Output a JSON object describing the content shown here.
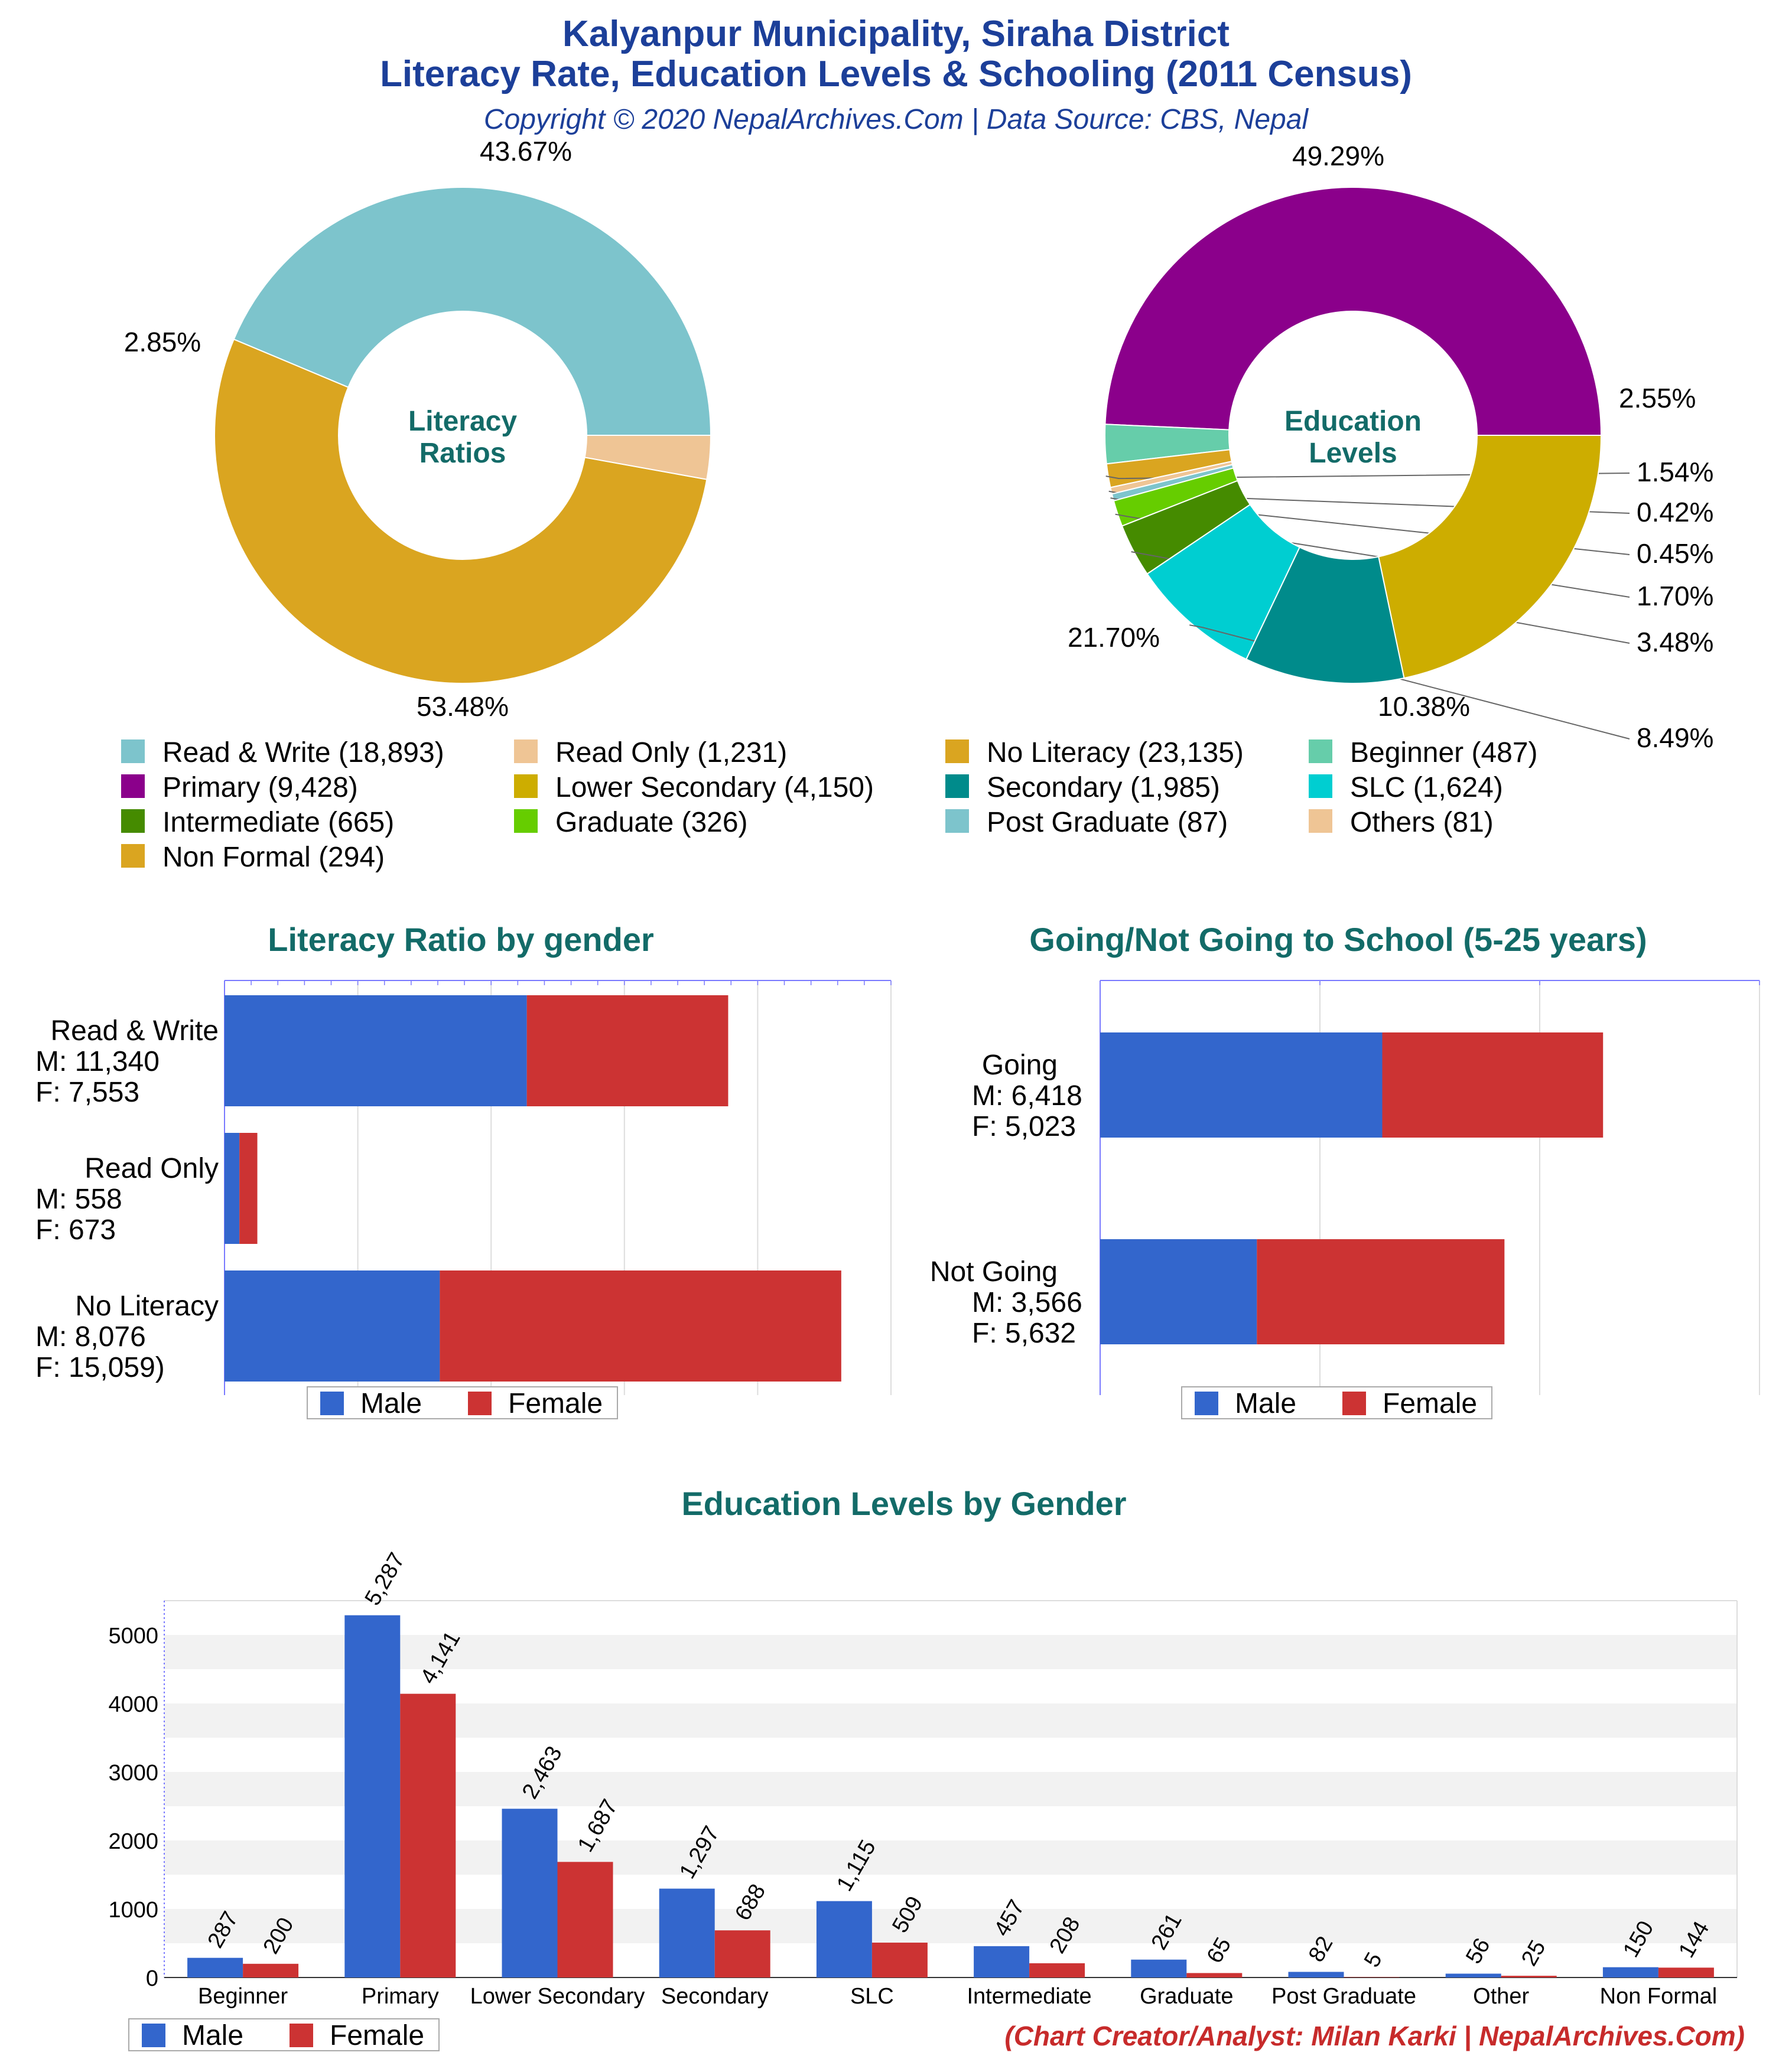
{
  "header": {
    "title_line1": "Kalyanpur Municipality, Siraha District",
    "title_line2": "Literacy Rate, Education Levels & Schooling (2011 Census)",
    "subtitle": "Copyright © 2020 NepalArchives.Com | Data Source: CBS, Nepal"
  },
  "footer": "(Chart Creator/Analyst: Milan Karki | NepalArchives.Com)",
  "colors": {
    "male": "#3366cc",
    "female": "#cc3333",
    "title": "#1c3f99",
    "section": "#136b68"
  },
  "legend": {
    "items": [
      {
        "label": "Read & Write (18,893)",
        "color": "#7dc4cc"
      },
      {
        "label": "Read Only (1,231)",
        "color": "#efc595"
      },
      {
        "label": "No Literacy (23,135)",
        "color": "#daa520"
      },
      {
        "label": "Beginner (487)",
        "color": "#66cdaa"
      },
      {
        "label": "Primary (9,428)",
        "color": "#8b008b"
      },
      {
        "label": "Lower Secondary (4,150)",
        "color": "#cdad00"
      },
      {
        "label": "Secondary (1,985)",
        "color": "#008b8b"
      },
      {
        "label": "SLC (1,624)",
        "color": "#00ced1"
      },
      {
        "label": "Intermediate (665)",
        "color": "#458b00"
      },
      {
        "label": "Graduate (326)",
        "color": "#66cd00"
      },
      {
        "label": "Post Graduate (87)",
        "color": "#7dc4cc"
      },
      {
        "label": "Others (81)",
        "color": "#efc595"
      },
      {
        "label": "Non Formal (294)",
        "color": "#daa520"
      }
    ]
  },
  "chart_data": [
    {
      "type": "pie",
      "title": "Literacy Ratios",
      "slices": [
        {
          "label": "Read & Write",
          "value": 18893,
          "percent_label": "43.67%",
          "color": "#7dc4cc"
        },
        {
          "label": "No Literacy",
          "value": 23135,
          "percent_label": "53.48%",
          "color": "#daa520"
        },
        {
          "label": "Read Only",
          "value": 1231,
          "percent_label": "2.85%",
          "color": "#efc595"
        }
      ]
    },
    {
      "type": "pie",
      "title": "Education Levels",
      "slices": [
        {
          "label": "Primary",
          "value": 9428,
          "percent_label": "49.29%",
          "color": "#8b008b"
        },
        {
          "label": "Beginner",
          "value": 487,
          "percent_label": "2.55%",
          "color": "#66cdaa"
        },
        {
          "label": "Non Formal",
          "value": 294,
          "percent_label": "1.54%",
          "color": "#daa520"
        },
        {
          "label": "Others",
          "value": 81,
          "percent_label": "0.42%",
          "color": "#efc595"
        },
        {
          "label": "Post Graduate",
          "value": 87,
          "percent_label": "0.45%",
          "color": "#7dc4cc"
        },
        {
          "label": "Graduate",
          "value": 326,
          "percent_label": "1.70%",
          "color": "#66cd00"
        },
        {
          "label": "Intermediate",
          "value": 665,
          "percent_label": "3.48%",
          "color": "#458b00"
        },
        {
          "label": "SLC",
          "value": 1624,
          "percent_label": "8.49%",
          "color": "#00ced1"
        },
        {
          "label": "Secondary",
          "value": 1985,
          "percent_label": "10.38%",
          "color": "#008b8b"
        },
        {
          "label": "Lower Secondary",
          "value": 4150,
          "percent_label": "21.70%",
          "color": "#cdad00"
        }
      ]
    },
    {
      "type": "bar",
      "orientation": "horizontal",
      "stacked": true,
      "title": "Literacy Ratio by gender",
      "categories": [
        {
          "name": "Read & Write",
          "m_label": "M: 11,340",
          "f_label": "F: 7,553"
        },
        {
          "name": "Read Only",
          "m_label": "M: 558",
          "f_label": "F: 673"
        },
        {
          "name": "No Literacy",
          "m_label": "M: 8,076",
          "f_label": "F: 15,059)"
        }
      ],
      "series": [
        {
          "name": "Male",
          "values": [
            11340,
            558,
            8076
          ]
        },
        {
          "name": "Female",
          "values": [
            7553,
            673,
            15059
          ]
        }
      ],
      "xlim": [
        0,
        25000
      ]
    },
    {
      "type": "bar",
      "orientation": "horizontal",
      "stacked": true,
      "title": "Going/Not Going to School (5-25 years)",
      "categories": [
        {
          "name": "Going",
          "m_label": "M: 6,418",
          "f_label": "F: 5,023"
        },
        {
          "name": "Not Going",
          "m_label": "M: 3,566",
          "f_label": "F: 5,632"
        }
      ],
      "series": [
        {
          "name": "Male",
          "values": [
            6418,
            3566
          ]
        },
        {
          "name": "Female",
          "values": [
            5023,
            5632
          ]
        }
      ],
      "xlim": [
        0,
        15000
      ]
    },
    {
      "type": "bar",
      "title": "Education Levels by Gender",
      "categories": [
        "Beginner",
        "Primary",
        "Lower Secondary",
        "Secondary",
        "SLC",
        "Intermediate",
        "Graduate",
        "Post Graduate",
        "Other",
        "Non Formal"
      ],
      "series": [
        {
          "name": "Male",
          "values": [
            287,
            5287,
            2463,
            1297,
            1115,
            457,
            261,
            82,
            56,
            150
          ],
          "labels": [
            "287",
            "5,287",
            "2,463",
            "1,297",
            "1,115",
            "457",
            "261",
            "82",
            "56",
            "150"
          ]
        },
        {
          "name": "Female",
          "values": [
            200,
            4141,
            1687,
            688,
            509,
            208,
            65,
            5,
            25,
            144
          ],
          "labels": [
            "200",
            "4,141",
            "1,687",
            "688",
            "509",
            "208",
            "65",
            "5",
            "25",
            "144"
          ]
        }
      ],
      "yticks": [
        "0",
        "1000",
        "2000",
        "3000",
        "4000",
        "5000"
      ],
      "ylim": [
        0,
        5500
      ],
      "grid": true,
      "legend_position": "bottom-left"
    }
  ]
}
